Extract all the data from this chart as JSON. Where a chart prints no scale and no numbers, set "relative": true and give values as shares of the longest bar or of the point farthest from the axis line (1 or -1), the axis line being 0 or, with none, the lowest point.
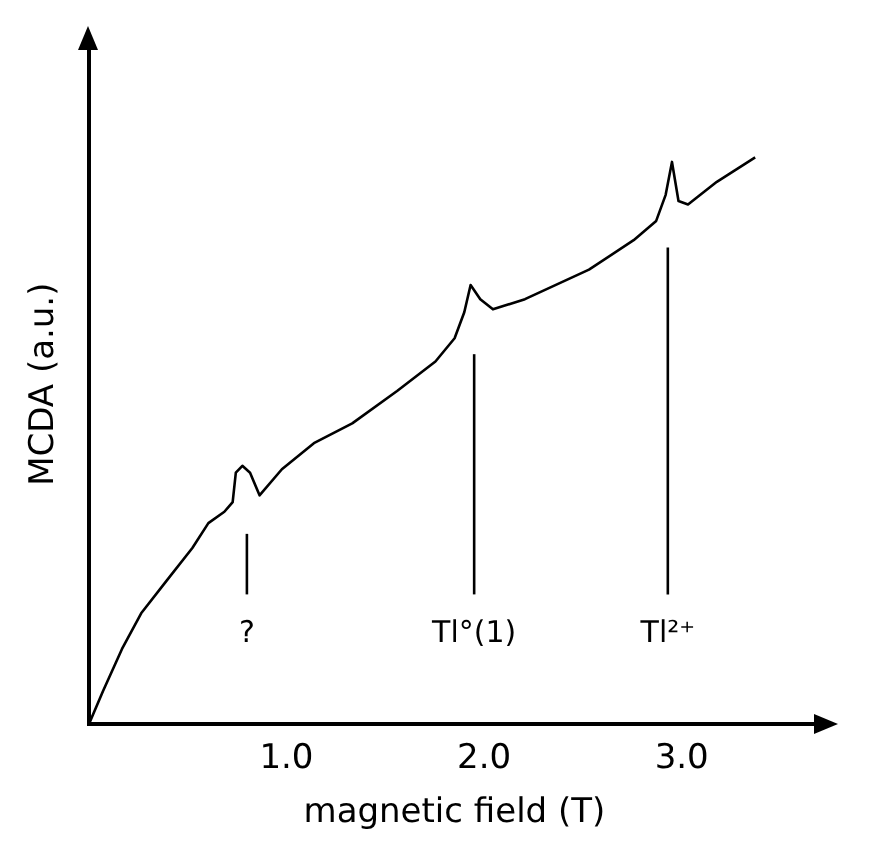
{
  "chart_data": {
    "type": "line",
    "relative": true,
    "xlabel": "magnetic field (T)",
    "ylabel": "MCDA (a.u.)",
    "xlim": [
      0,
      3.7
    ],
    "xticks": [
      {
        "value": 1,
        "label": "1.0"
      },
      {
        "value": 2,
        "label": "2.0"
      },
      {
        "value": 3,
        "label": "3.0"
      }
    ],
    "tick_labels": "x",
    "grid": false,
    "legend": false,
    "marker": "none",
    "line_style": "solid",
    "ref_lines": [
      {
        "axis": "x",
        "value": 0.8,
        "label": "?"
      },
      {
        "axis": "x",
        "value": 1.95,
        "label": "Tl°(1)"
      },
      {
        "axis": "x",
        "value": 2.93,
        "label": "Tl²⁺"
      }
    ],
    "series": [
      {
        "color": "#000000",
        "x": [
          0,
          0.071,
          0.168,
          0.265,
          0.395,
          0.524,
          0.605,
          0.686,
          0.728,
          0.744,
          0.777,
          0.816,
          0.864,
          0.977,
          1.139,
          1.333,
          1.56,
          1.754,
          1.851,
          1.9,
          1.932,
          1.981,
          2.045,
          2.207,
          2.531,
          2.757,
          2.871,
          2.919,
          2.951,
          2.984,
          3.032,
          3.178,
          3.372
        ],
        "values": [
          0,
          0.058,
          0.133,
          0.196,
          0.254,
          0.311,
          0.355,
          0.375,
          0.392,
          0.444,
          0.456,
          0.444,
          0.404,
          0.45,
          0.496,
          0.531,
          0.588,
          0.64,
          0.681,
          0.727,
          0.775,
          0.75,
          0.732,
          0.75,
          0.802,
          0.854,
          0.888,
          0.934,
          0.992,
          0.923,
          0.917,
          0.957,
          1.0
        ]
      }
    ]
  }
}
